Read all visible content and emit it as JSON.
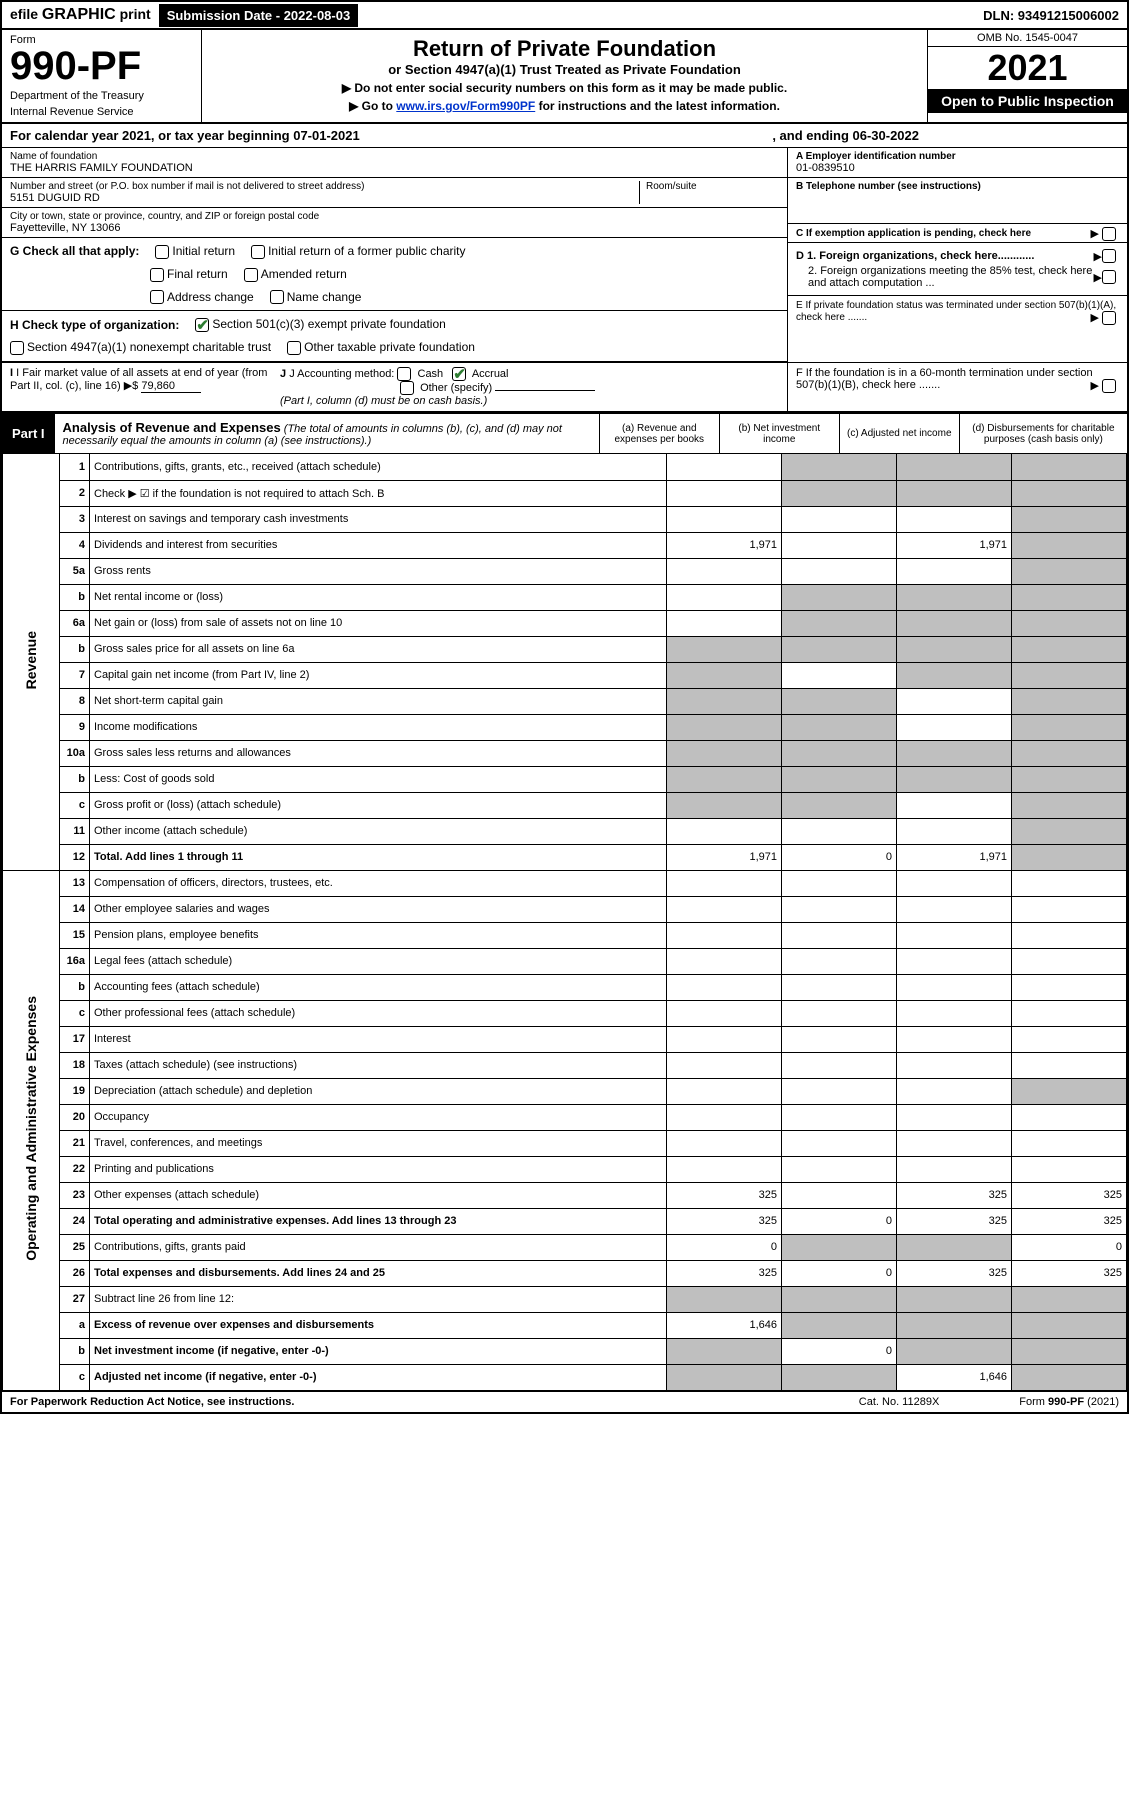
{
  "colors": {
    "text": "#000000",
    "bg": "#ffffff",
    "black": "#000000",
    "link": "#0033cc",
    "check": "#2e7d32",
    "grey": "#bfbfbf"
  },
  "topbar": {
    "efile_prefix": "efile",
    "efile_graphic": "GRAPHIC",
    "efile_print": "print",
    "submission_label": "Submission Date - 2022-08-03",
    "dln": "DLN: 93491215006002"
  },
  "header": {
    "form_word": "Form",
    "form_number": "990-PF",
    "dept": "Department of the Treasury",
    "irs": "Internal Revenue Service",
    "title": "Return of Private Foundation",
    "subtitle": "or Section 4947(a)(1) Trust Treated as Private Foundation",
    "note1": "▶ Do not enter social security numbers on this form as it may be made public.",
    "note2_pre": "▶ Go to ",
    "note2_link": "www.irs.gov/Form990PF",
    "note2_post": " for instructions and the latest information.",
    "omb": "OMB No. 1545-0047",
    "year": "2021",
    "open": "Open to Public Inspection"
  },
  "yearline": {
    "text": "For calendar year 2021, or tax year beginning 07-01-2021",
    "ending": ", and ending 06-30-2022"
  },
  "info": {
    "name_label": "Name of foundation",
    "name": "THE HARRIS FAMILY FOUNDATION",
    "addr_label": "Number and street (or P.O. box number if mail is not delivered to street address)",
    "addr": "5151 DUGUID RD",
    "room_label": "Room/suite",
    "city_label": "City or town, state or province, country, and ZIP or foreign postal code",
    "city": "Fayetteville, NY  13066",
    "a_label": "A Employer identification number",
    "a_val": "01-0839510",
    "b_label": "B Telephone number (see instructions)",
    "c_label": "C If exemption application is pending, check here",
    "d1": "D 1. Foreign organizations, check here............",
    "d2": "2. Foreign organizations meeting the 85% test, check here and attach computation ...",
    "e": "E  If private foundation status was terminated under section 507(b)(1)(A), check here .......",
    "f": "F  If the foundation is in a 60-month termination under section 507(b)(1)(B), check here .......",
    "g_label": "G Check all that apply:",
    "g_opts": [
      "Initial return",
      "Final return",
      "Address change",
      "Initial return of a former public charity",
      "Amended return",
      "Name change"
    ],
    "h_label": "H Check type of organization:",
    "h_opt1": "Section 501(c)(3) exempt private foundation",
    "h_opt2": "Section 4947(a)(1) nonexempt charitable trust",
    "h_opt3": "Other taxable private foundation",
    "i_label": "I Fair market value of all assets at end of year (from Part II, col. (c), line 16)",
    "i_val": "79,860",
    "j_label": "J Accounting method:",
    "j_cash": "Cash",
    "j_accrual": "Accrual",
    "j_other": "Other (specify)",
    "j_note": "(Part I, column (d) must be on cash basis.)"
  },
  "part1": {
    "tag": "Part I",
    "title": "Analysis of Revenue and Expenses",
    "note": "(The total of amounts in columns (b), (c), and (d) may not necessarily equal the amounts in column (a) (see instructions).)",
    "cols": {
      "a": "(a)  Revenue and expenses per books",
      "b": "(b)  Net investment income",
      "c": "(c)  Adjusted net income",
      "d": "(d)  Disbursements for charitable purposes (cash basis only)"
    },
    "side_revenue": "Revenue",
    "side_expenses": "Operating and Administrative Expenses"
  },
  "rows": [
    {
      "n": "1",
      "t": "Contributions, gifts, grants, etc., received (attach schedule)",
      "a": "",
      "b": "",
      "c": "",
      "d": "",
      "gb": true,
      "gc": true,
      "gd": true
    },
    {
      "n": "2",
      "t": "Check ▶ ☑ if the foundation is not required to attach Sch. B",
      "a": "",
      "b": "",
      "c": "",
      "d": "",
      "gb": true,
      "gc": true,
      "gd": true,
      "bold_not": true
    },
    {
      "n": "3",
      "t": "Interest on savings and temporary cash investments",
      "a": "",
      "b": "",
      "c": "",
      "d": "",
      "gd": true
    },
    {
      "n": "4",
      "t": "Dividends and interest from securities",
      "a": "1,971",
      "b": "",
      "c": "1,971",
      "d": "",
      "gd": true
    },
    {
      "n": "5a",
      "t": "Gross rents",
      "a": "",
      "b": "",
      "c": "",
      "d": "",
      "gd": true
    },
    {
      "n": "b",
      "t": "Net rental income or (loss)",
      "a": "",
      "b": "",
      "c": "",
      "d": "",
      "gb": true,
      "gc": true,
      "gd": true
    },
    {
      "n": "6a",
      "t": "Net gain or (loss) from sale of assets not on line 10",
      "a": "",
      "b": "",
      "c": "",
      "d": "",
      "gb": true,
      "gc": true,
      "gd": true
    },
    {
      "n": "b",
      "t": "Gross sales price for all assets on line 6a",
      "a": "",
      "b": "",
      "c": "",
      "d": "",
      "ga": true,
      "gb": true,
      "gc": true,
      "gd": true
    },
    {
      "n": "7",
      "t": "Capital gain net income (from Part IV, line 2)",
      "a": "",
      "b": "",
      "c": "",
      "d": "",
      "ga": true,
      "gc": true,
      "gd": true
    },
    {
      "n": "8",
      "t": "Net short-term capital gain",
      "a": "",
      "b": "",
      "c": "",
      "d": "",
      "ga": true,
      "gb": true,
      "gd": true
    },
    {
      "n": "9",
      "t": "Income modifications",
      "a": "",
      "b": "",
      "c": "",
      "d": "",
      "ga": true,
      "gb": true,
      "gd": true
    },
    {
      "n": "10a",
      "t": "Gross sales less returns and allowances",
      "a": "",
      "b": "",
      "c": "",
      "d": "",
      "ga": true,
      "gb": true,
      "gc": true,
      "gd": true
    },
    {
      "n": "b",
      "t": "Less: Cost of goods sold",
      "a": "",
      "b": "",
      "c": "",
      "d": "",
      "ga": true,
      "gb": true,
      "gc": true,
      "gd": true
    },
    {
      "n": "c",
      "t": "Gross profit or (loss) (attach schedule)",
      "a": "",
      "b": "",
      "c": "",
      "d": "",
      "ga": true,
      "gb": true,
      "gd": true
    },
    {
      "n": "11",
      "t": "Other income (attach schedule)",
      "a": "",
      "b": "",
      "c": "",
      "d": "",
      "gd": true
    },
    {
      "n": "12",
      "t": "Total. Add lines 1 through 11",
      "a": "1,971",
      "b": "0",
      "c": "1,971",
      "d": "",
      "gd": true,
      "bold": true
    },
    {
      "n": "13",
      "t": "Compensation of officers, directors, trustees, etc.",
      "a": "",
      "b": "",
      "c": "",
      "d": ""
    },
    {
      "n": "14",
      "t": "Other employee salaries and wages",
      "a": "",
      "b": "",
      "c": "",
      "d": ""
    },
    {
      "n": "15",
      "t": "Pension plans, employee benefits",
      "a": "",
      "b": "",
      "c": "",
      "d": ""
    },
    {
      "n": "16a",
      "t": "Legal fees (attach schedule)",
      "a": "",
      "b": "",
      "c": "",
      "d": ""
    },
    {
      "n": "b",
      "t": "Accounting fees (attach schedule)",
      "a": "",
      "b": "",
      "c": "",
      "d": ""
    },
    {
      "n": "c",
      "t": "Other professional fees (attach schedule)",
      "a": "",
      "b": "",
      "c": "",
      "d": ""
    },
    {
      "n": "17",
      "t": "Interest",
      "a": "",
      "b": "",
      "c": "",
      "d": ""
    },
    {
      "n": "18",
      "t": "Taxes (attach schedule) (see instructions)",
      "a": "",
      "b": "",
      "c": "",
      "d": ""
    },
    {
      "n": "19",
      "t": "Depreciation (attach schedule) and depletion",
      "a": "",
      "b": "",
      "c": "",
      "d": "",
      "gd": true
    },
    {
      "n": "20",
      "t": "Occupancy",
      "a": "",
      "b": "",
      "c": "",
      "d": ""
    },
    {
      "n": "21",
      "t": "Travel, conferences, and meetings",
      "a": "",
      "b": "",
      "c": "",
      "d": ""
    },
    {
      "n": "22",
      "t": "Printing and publications",
      "a": "",
      "b": "",
      "c": "",
      "d": ""
    },
    {
      "n": "23",
      "t": "Other expenses (attach schedule)",
      "a": "325",
      "b": "",
      "c": "325",
      "d": "325"
    },
    {
      "n": "24",
      "t": "Total operating and administrative expenses. Add lines 13 through 23",
      "a": "325",
      "b": "0",
      "c": "325",
      "d": "325",
      "bold": true
    },
    {
      "n": "25",
      "t": "Contributions, gifts, grants paid",
      "a": "0",
      "b": "",
      "c": "",
      "d": "0",
      "gb": true,
      "gc": true
    },
    {
      "n": "26",
      "t": "Total expenses and disbursements. Add lines 24 and 25",
      "a": "325",
      "b": "0",
      "c": "325",
      "d": "325",
      "bold": true
    },
    {
      "n": "27",
      "t": "Subtract line 26 from line 12:",
      "a": "",
      "b": "",
      "c": "",
      "d": "",
      "ga": true,
      "gb": true,
      "gc": true,
      "gd": true
    },
    {
      "n": "a",
      "t": "Excess of revenue over expenses and disbursements",
      "a": "1,646",
      "b": "",
      "c": "",
      "d": "",
      "gb": true,
      "gc": true,
      "gd": true,
      "bold": true
    },
    {
      "n": "b",
      "t": "Net investment income (if negative, enter -0-)",
      "a": "",
      "b": "0",
      "c": "",
      "d": "",
      "ga": true,
      "gc": true,
      "gd": true,
      "bold": true
    },
    {
      "n": "c",
      "t": "Adjusted net income (if negative, enter -0-)",
      "a": "",
      "b": "",
      "c": "1,646",
      "d": "",
      "ga": true,
      "gb": true,
      "gd": true,
      "bold": true
    }
  ],
  "footer": {
    "left": "For Paperwork Reduction Act Notice, see instructions.",
    "mid": "Cat. No. 11289X",
    "right": "Form 990-PF (2021)"
  }
}
